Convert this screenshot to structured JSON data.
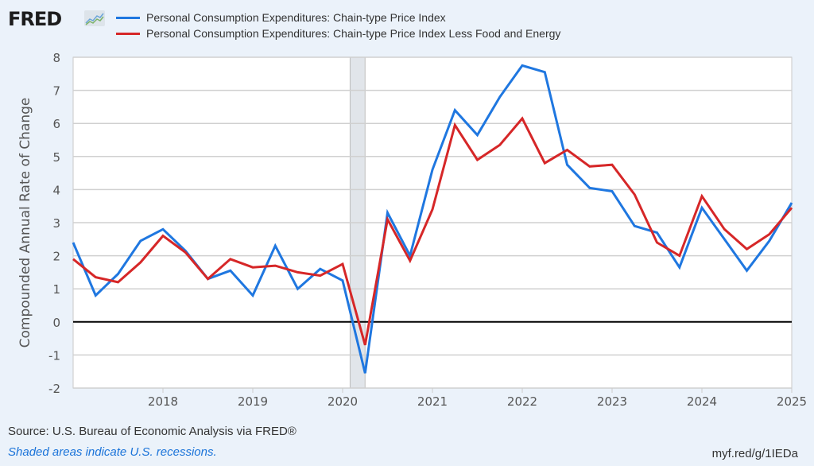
{
  "header": {
    "logo": "FRED",
    "logo_icon": "chart-line-icon"
  },
  "footer": {
    "source": "Source: U.S. Bureau of Economic Analysis via FRED®",
    "note": "Shaded areas indicate U.S. recessions.",
    "url": "myf.red/g/1IEDa"
  },
  "colors": {
    "series1": "#1f77e0",
    "series2": "#d62728",
    "background": "#ebf2fa",
    "recession": "#e1e5ea"
  },
  "chart_data": {
    "type": "line",
    "title": "",
    "xlabel": "",
    "ylabel": "Compounded Annual Rate of Change",
    "ylim": [
      -2,
      8
    ],
    "yticks": [
      "8",
      "7",
      "6",
      "5",
      "4",
      "3",
      "2",
      "1",
      "0",
      "-1",
      "-2"
    ],
    "xticks": [
      "2018",
      "2019",
      "2020",
      "2021",
      "2022",
      "2023",
      "2024",
      "2025"
    ],
    "xlim": [
      "2017-01-01",
      "2025-01-01"
    ],
    "grid": true,
    "legend": "top",
    "recessions": [
      {
        "start": "2020-02",
        "end": "2020-04"
      }
    ],
    "x": [
      "2017Q1",
      "2017Q2",
      "2017Q3",
      "2017Q4",
      "2018Q1",
      "2018Q2",
      "2018Q3",
      "2018Q4",
      "2019Q1",
      "2019Q2",
      "2019Q3",
      "2019Q4",
      "2020Q1",
      "2020Q2",
      "2020Q3",
      "2020Q4",
      "2021Q1",
      "2021Q2",
      "2021Q3",
      "2021Q4",
      "2022Q1",
      "2022Q2",
      "2022Q3",
      "2022Q4",
      "2023Q1",
      "2023Q2",
      "2023Q3",
      "2023Q4",
      "2024Q1",
      "2024Q2",
      "2024Q3",
      "2024Q4",
      "2025Q1"
    ],
    "series": [
      {
        "name": "Personal Consumption Expenditures: Chain-type Price Index",
        "color": "#1f77e0",
        "values": [
          2.4,
          0.8,
          1.45,
          2.45,
          2.8,
          2.15,
          1.3,
          1.55,
          0.8,
          2.3,
          1.0,
          1.6,
          1.25,
          -1.55,
          3.3,
          2.0,
          4.6,
          6.4,
          5.65,
          6.8,
          7.75,
          7.55,
          4.75,
          4.05,
          3.95,
          2.9,
          2.7,
          1.65,
          3.45,
          2.5,
          1.55,
          2.45,
          3.6
        ]
      },
      {
        "name": "Personal Consumption Expenditures: Chain-type Price Index Less Food and Energy",
        "color": "#d62728",
        "values": [
          1.9,
          1.35,
          1.2,
          1.8,
          2.6,
          2.1,
          1.3,
          1.9,
          1.65,
          1.7,
          1.5,
          1.4,
          1.75,
          -0.7,
          3.1,
          1.85,
          3.4,
          5.95,
          4.9,
          5.35,
          6.15,
          4.8,
          5.2,
          4.7,
          4.75,
          3.85,
          2.4,
          2.0,
          3.8,
          2.8,
          2.2,
          2.65,
          3.45
        ]
      }
    ]
  }
}
